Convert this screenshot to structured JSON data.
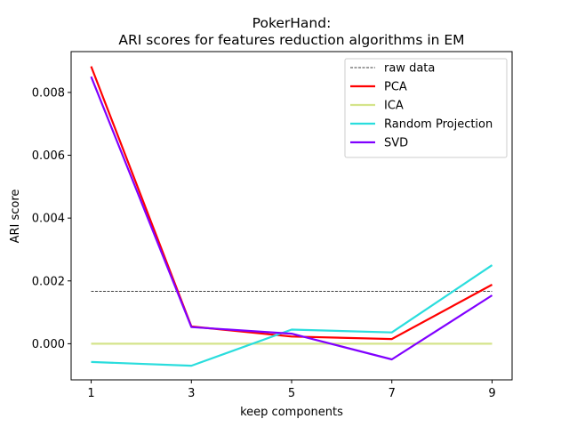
{
  "chart_data": {
    "type": "line",
    "title": "PokerHand:",
    "subtitle": "ARI scores for features reduction algorithms in EM",
    "xlabel": "keep components",
    "ylabel": "ARI score",
    "x": [
      1,
      3,
      5,
      7,
      9
    ],
    "xticks": [
      "1",
      "3",
      "5",
      "7",
      "9"
    ],
    "yticks": [
      "0.000",
      "0.002",
      "0.004",
      "0.006",
      "0.008"
    ],
    "yticks_values": [
      0,
      0.002,
      0.004,
      0.006,
      0.008
    ],
    "xlim": [
      0.6,
      9.4
    ],
    "ylim": [
      -0.00115,
      0.0093
    ],
    "grid": false,
    "legend_position": "top-right",
    "series": [
      {
        "name": "raw data",
        "color": "#000000",
        "style": "dashed",
        "values": [
          0.00167,
          0.00167,
          0.00167,
          0.00167,
          0.00167
        ]
      },
      {
        "name": "PCA",
        "color": "#ff0000",
        "style": "solid",
        "values": [
          0.00883,
          0.00055,
          0.00023,
          0.00015,
          0.00188
        ]
      },
      {
        "name": "ICA",
        "color": "#d4e48a",
        "style": "solid",
        "values": [
          0.0,
          0.0,
          0.0,
          0.0,
          0.0
        ]
      },
      {
        "name": "Random Projection",
        "color": "#2adddd",
        "style": "solid",
        "values": [
          -0.00058,
          -0.0007,
          0.00045,
          0.00036,
          0.0025
        ]
      },
      {
        "name": "SVD",
        "color": "#8000ff",
        "style": "solid",
        "values": [
          0.0085,
          0.00053,
          0.00032,
          -0.0005,
          0.00154
        ]
      }
    ]
  }
}
